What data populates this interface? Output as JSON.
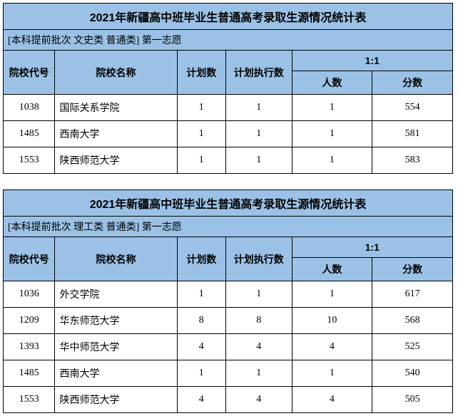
{
  "tables": [
    {
      "title": "2021年新疆高中班毕业生普通高考录取生源情况统计表",
      "subtitle": "[本科提前批次 文史类 普通类] 第一志愿",
      "headers": {
        "code": "院校代号",
        "name": "院校名称",
        "plan": "计划数",
        "exec": "计划执行数",
        "ratio": "1:1",
        "count": "人数",
        "score": "分数"
      },
      "rows": [
        {
          "code": "1038",
          "name": "国际关系学院",
          "plan": "1",
          "exec": "1",
          "count": "1",
          "score": "554"
        },
        {
          "code": "1485",
          "name": "西南大学",
          "plan": "1",
          "exec": "1",
          "count": "1",
          "score": "581"
        },
        {
          "code": "1553",
          "name": "陕西师范大学",
          "plan": "1",
          "exec": "1",
          "count": "1",
          "score": "583"
        }
      ]
    },
    {
      "title": "2021年新疆高中班毕业生普通高考录取生源情况统计表",
      "subtitle": "[本科提前批次 理工类 普通类] 第一志愿",
      "headers": {
        "code": "院校代号",
        "name": "院校名称",
        "plan": "计划数",
        "exec": "计划执行数",
        "ratio": "1:1",
        "count": "人数",
        "score": "分数"
      },
      "rows": [
        {
          "code": "1036",
          "name": "外交学院",
          "plan": "1",
          "exec": "1",
          "count": "1",
          "score": "617"
        },
        {
          "code": "1209",
          "name": "华东师范大学",
          "plan": "8",
          "exec": "8",
          "count": "10",
          "score": "568"
        },
        {
          "code": "1393",
          "name": "华中师范大学",
          "plan": "4",
          "exec": "4",
          "count": "4",
          "score": "525"
        },
        {
          "code": "1485",
          "name": "西南大学",
          "plan": "1",
          "exec": "1",
          "count": "1",
          "score": "540"
        },
        {
          "code": "1553",
          "name": "陕西师范大学",
          "plan": "4",
          "exec": "4",
          "count": "4",
          "score": "505"
        }
      ]
    }
  ]
}
